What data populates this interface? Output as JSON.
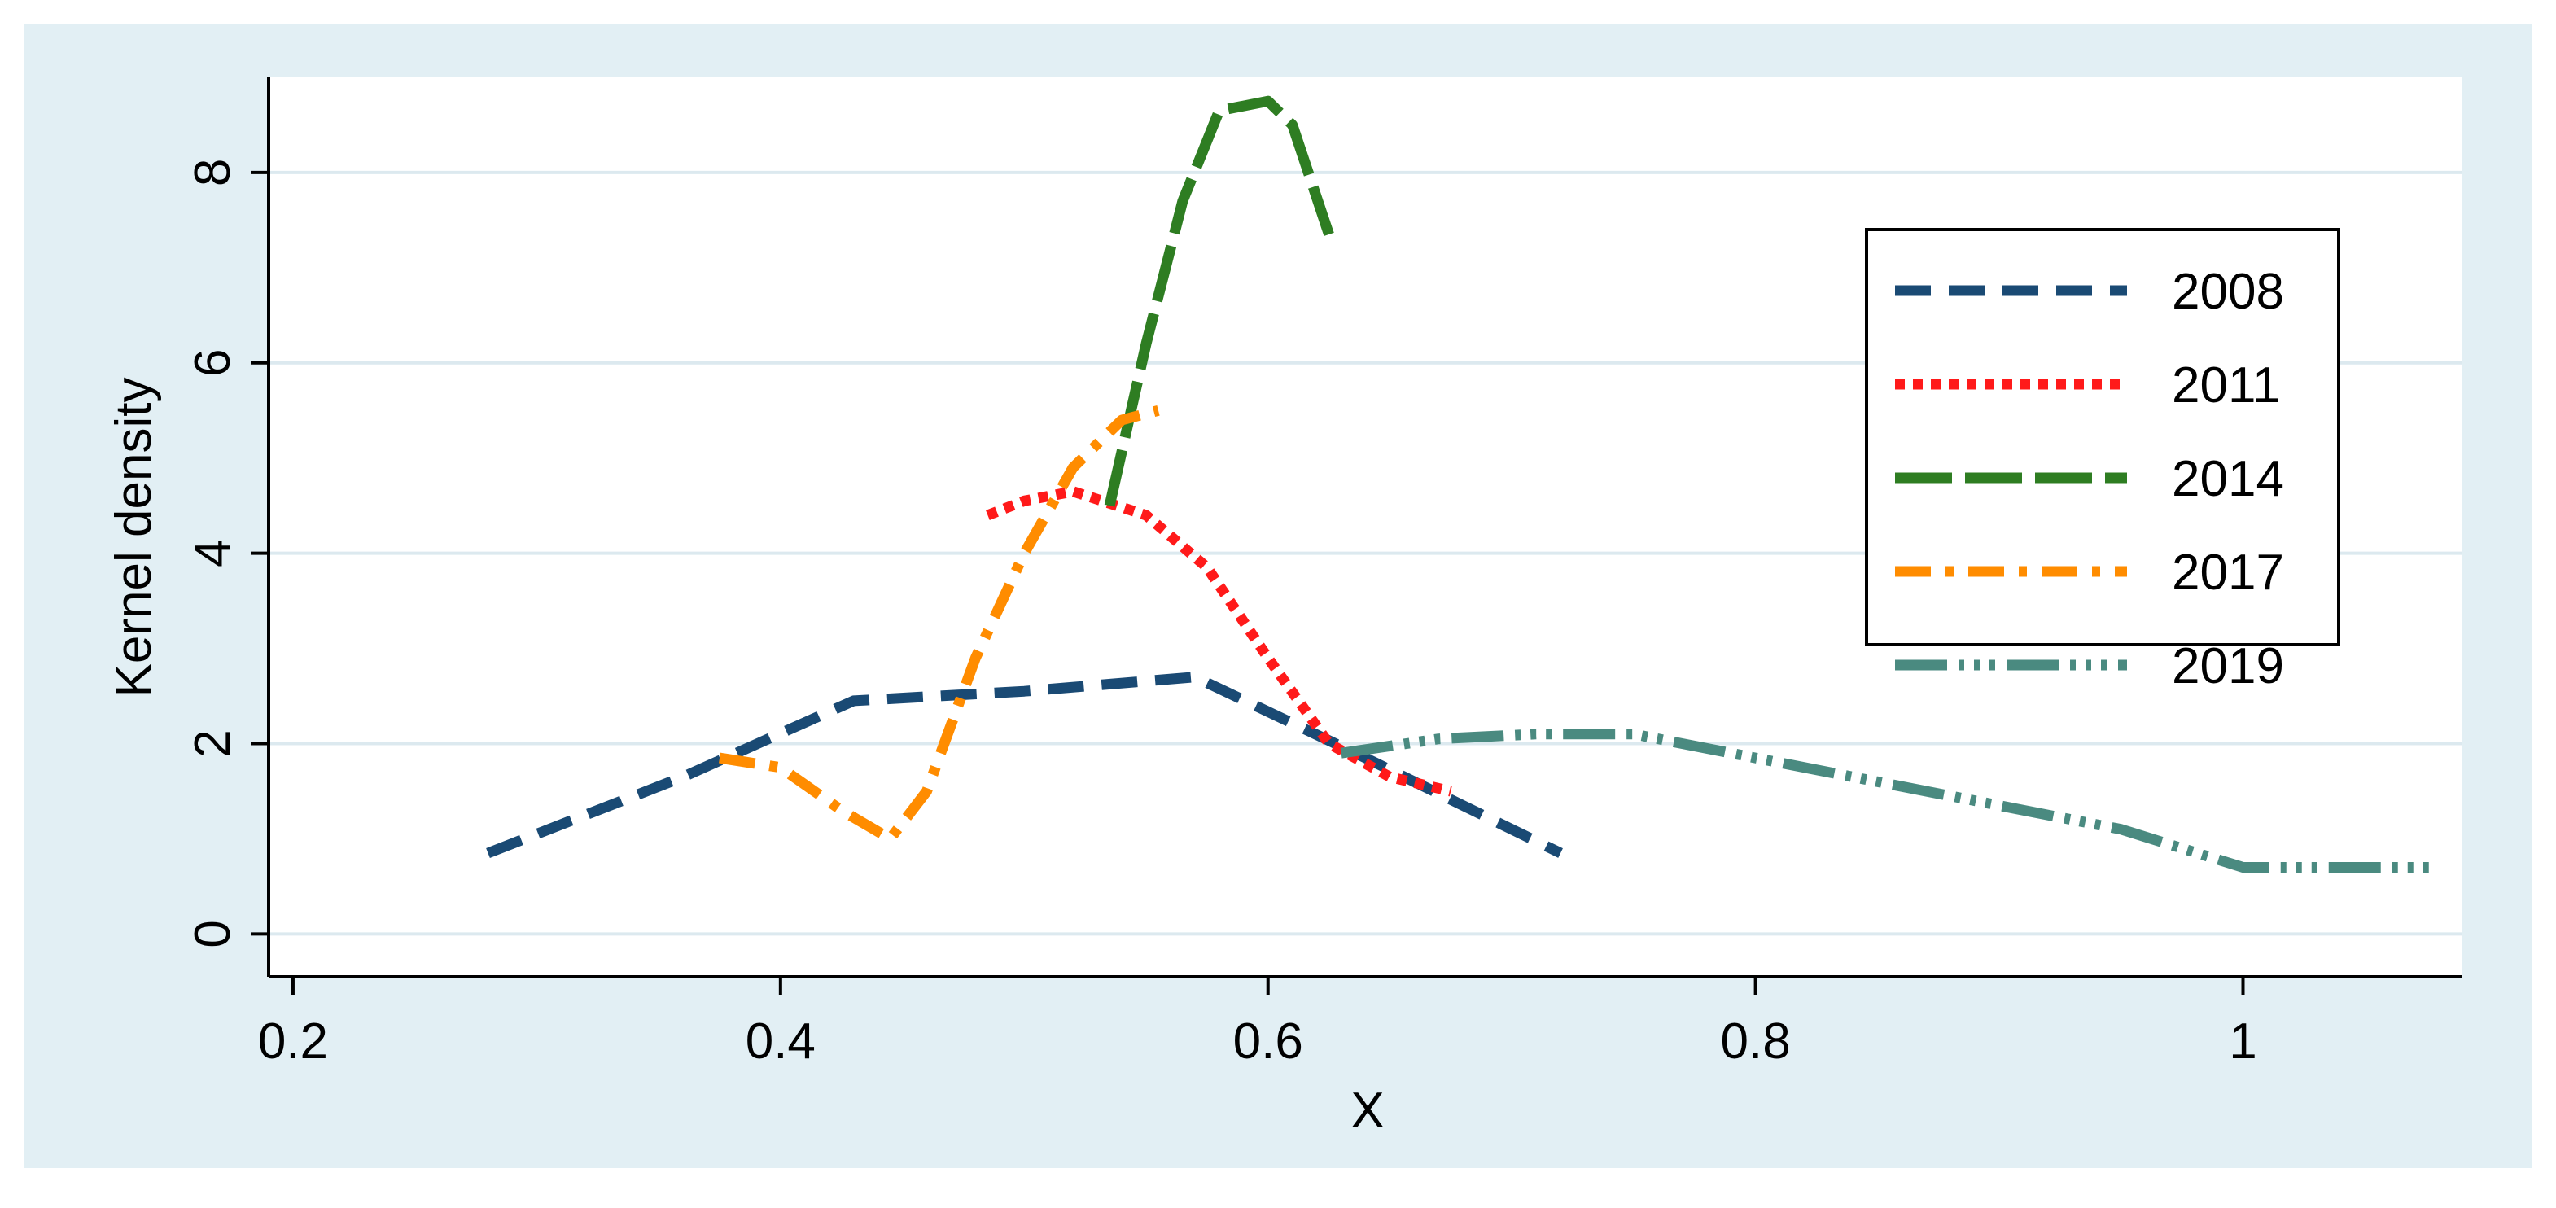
{
  "colors": {
    "frame_bg": "#e2eff4",
    "plot_bg": "#ffffff",
    "gridline": "#dce9ef",
    "axis": "#000000"
  },
  "chart_data": {
    "type": "line",
    "title": "",
    "xlabel": "X",
    "ylabel": "Kernel density",
    "xlim": [
      0.19,
      1.09
    ],
    "ylim": [
      -0.45,
      9.0
    ],
    "xticks": [
      {
        "value": 0.2,
        "label": "0.2"
      },
      {
        "value": 0.4,
        "label": "0.4"
      },
      {
        "value": 0.6,
        "label": "0.6"
      },
      {
        "value": 0.8,
        "label": "0.8"
      },
      {
        "value": 1.0,
        "label": "1"
      }
    ],
    "yticks": [
      {
        "value": 0,
        "label": "0"
      },
      {
        "value": 2,
        "label": "2"
      },
      {
        "value": 4,
        "label": "4"
      },
      {
        "value": 6,
        "label": "6"
      },
      {
        "value": 8,
        "label": "8"
      }
    ],
    "grid": "horizontal",
    "legend": "right",
    "series": [
      {
        "name": "2008",
        "color": "#1a4a74",
        "style": "dash",
        "x": [
          0.28,
          0.36,
          0.43,
          0.5,
          0.57,
          0.64,
          0.72
        ],
        "y": [
          0.85,
          1.65,
          2.45,
          2.55,
          2.7,
          1.85,
          0.85
        ]
      },
      {
        "name": "2011",
        "color": "#ff1a1a",
        "style": "dot",
        "x": [
          0.485,
          0.5,
          0.52,
          0.55,
          0.575,
          0.6,
          0.625,
          0.65,
          0.675
        ],
        "y": [
          4.4,
          4.55,
          4.65,
          4.4,
          3.85,
          2.9,
          2.0,
          1.65,
          1.5
        ]
      },
      {
        "name": "2014",
        "color": "#2e7d22",
        "style": "longdash",
        "x": [
          0.535,
          0.55,
          0.565,
          0.58,
          0.59,
          0.6,
          0.61,
          0.625
        ],
        "y": [
          4.5,
          6.2,
          7.7,
          8.65,
          8.7,
          8.75,
          8.5,
          7.35
        ]
      },
      {
        "name": "2017",
        "color": "#ff8c00",
        "style": "dashdot",
        "x": [
          0.375,
          0.4,
          0.425,
          0.445,
          0.46,
          0.48,
          0.5,
          0.52,
          0.54,
          0.555
        ],
        "y": [
          1.85,
          1.75,
          1.3,
          1.0,
          1.5,
          2.9,
          4.0,
          4.9,
          5.4,
          5.5
        ]
      },
      {
        "name": "2019",
        "color": "#4a8a80",
        "style": "longdashdot3",
        "x": [
          0.63,
          0.67,
          0.71,
          0.75,
          0.8,
          0.85,
          0.9,
          0.95,
          1.0,
          1.03,
          1.08
        ],
        "y": [
          1.9,
          2.05,
          2.1,
          2.1,
          1.85,
          1.6,
          1.35,
          1.1,
          0.7,
          0.7,
          0.7
        ]
      }
    ]
  }
}
